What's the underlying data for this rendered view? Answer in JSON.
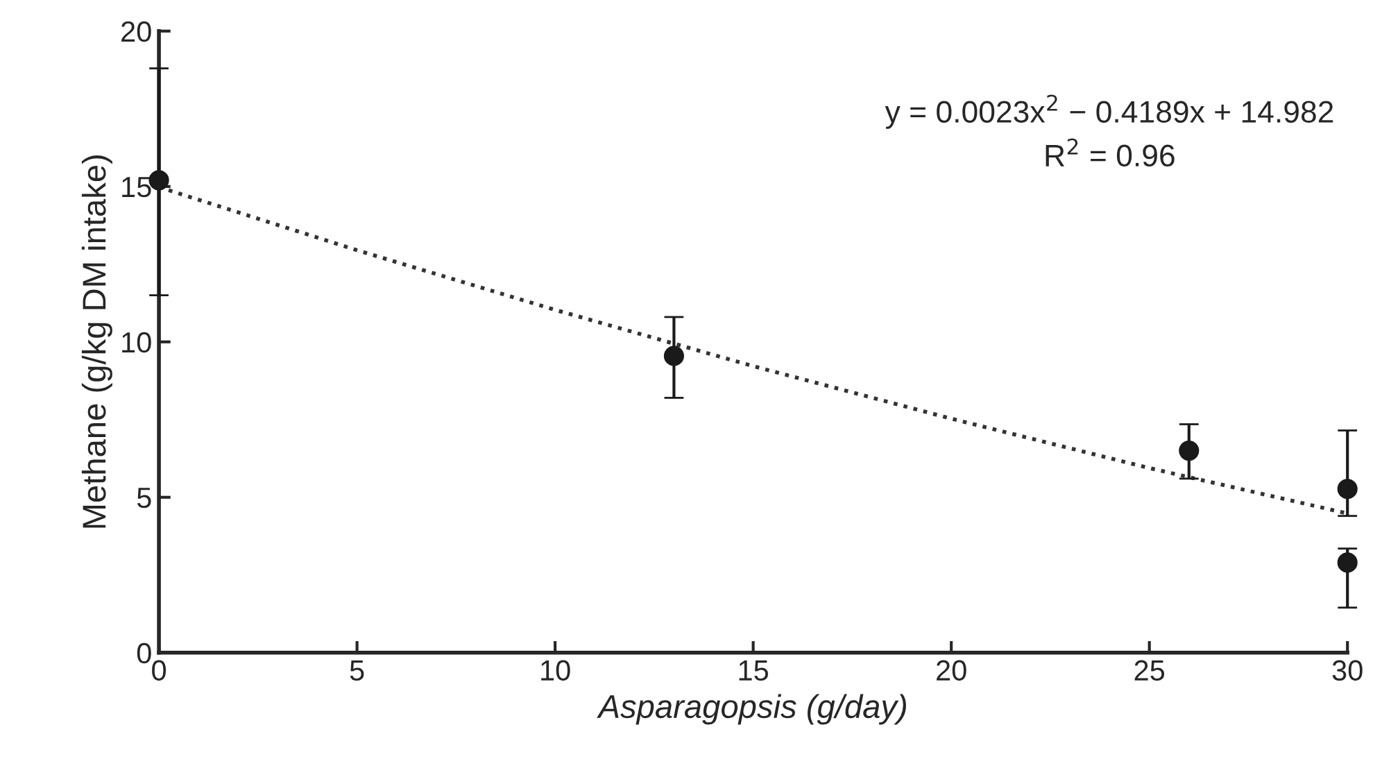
{
  "chart_data": {
    "type": "scatter",
    "xlabel": "Asparagopsis (g/day)",
    "ylabel": "Methane (g/kg DM intake)",
    "xlim": [
      0,
      30
    ],
    "xticks": [
      0,
      5,
      10,
      15,
      20,
      25,
      30
    ],
    "ylim": [
      0,
      20
    ],
    "yticks": [
      0,
      5,
      10,
      15,
      20
    ],
    "grid": false,
    "legend": false,
    "series": [
      {
        "color": "#1a1a1a",
        "marker": "circle",
        "x": [
          0,
          13,
          26,
          30,
          30
        ],
        "values": [
          15.2,
          9.55,
          6.5,
          5.27,
          2.9
        ],
        "errors": [
          [
            11.5,
            18.8
          ],
          [
            8.2,
            10.8
          ],
          [
            5.6,
            7.35
          ],
          [
            4.4,
            7.15
          ],
          [
            1.45,
            3.35
          ]
        ]
      },
      {
        "type": "line",
        "color": "#333333",
        "line_style": "dotted",
        "marker": "none",
        "x": [
          0,
          5,
          10,
          15,
          20,
          25,
          30
        ],
        "values": [
          14.98,
          12.95,
          11.03,
          9.22,
          7.53,
          5.94,
          4.48
        ]
      }
    ],
    "annotations": [
      "y = 0.0023x$^{2}$ − 0.4189x + 14.982",
      "R$^{2}$ = 0.96"
    ]
  }
}
